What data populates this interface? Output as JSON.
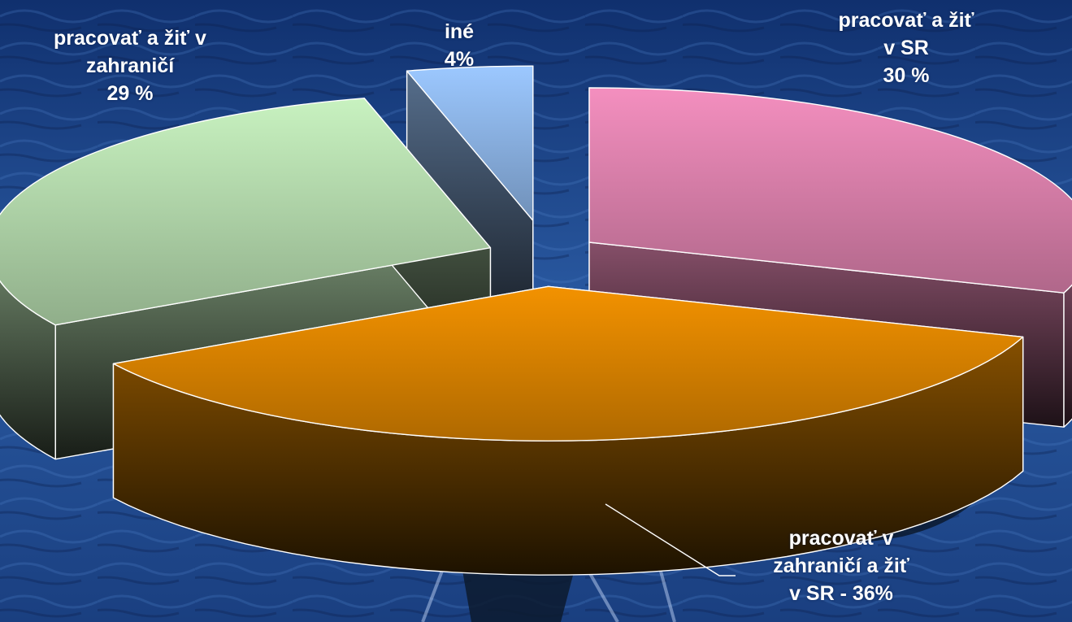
{
  "chart_data": {
    "type": "pie",
    "title": "",
    "style": "3d-exploded",
    "legend": "none",
    "slices": [
      {
        "value": 30,
        "color": "#f48fbf",
        "label_lines": [
          "pracovať a žiť",
          "v SR",
          "30 %"
        ]
      },
      {
        "value": 36,
        "color": "#f39200",
        "label_lines": [
          "pracovať v",
          "zahraničí a žiť",
          "v SR - 36%"
        ]
      },
      {
        "value": 29,
        "color": "#c8f2c0",
        "label_lines": [
          "pracovať a žiť v",
          "zahraničí",
          "29 %"
        ]
      },
      {
        "value": 4,
        "color": "#9cc8ff",
        "label_lines": [
          "iné",
          "4%"
        ]
      }
    ]
  },
  "background": {
    "colors": [
      "#0c2358",
      "#2f5fa8",
      "#122e6b"
    ],
    "element_names": [
      "ocean-background",
      "whale-tail-icon"
    ]
  }
}
